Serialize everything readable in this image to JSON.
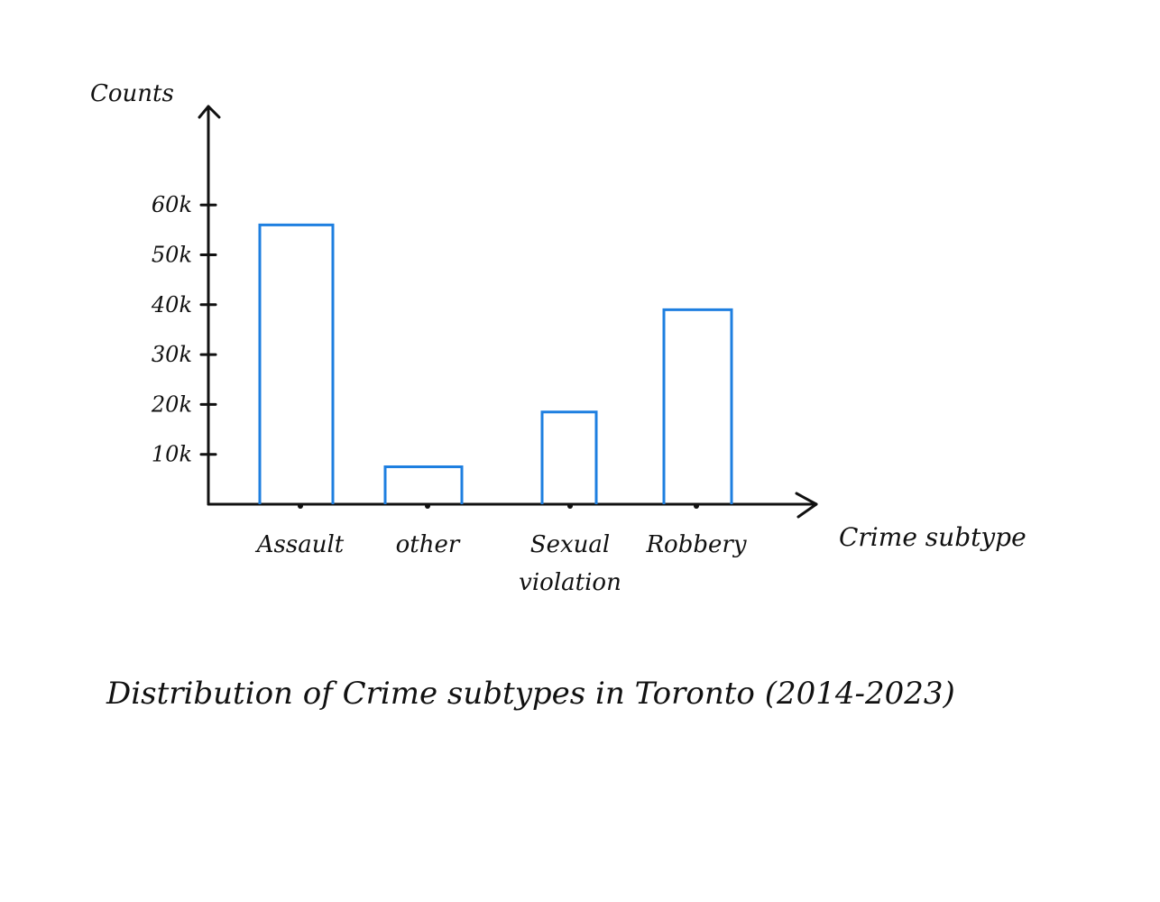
{
  "chart_data": {
    "type": "bar",
    "title": "Distribution of Crime subtypes in Toronto (2014-2023)",
    "xlabel": "Crime subtype",
    "ylabel": "Counts",
    "categories": [
      "Assault",
      "other",
      "Sexual violation",
      "Robbery"
    ],
    "values": [
      56000,
      7500,
      18500,
      39000
    ],
    "yticks": [
      10000,
      20000,
      30000,
      40000,
      50000,
      60000
    ],
    "ytick_labels": [
      "10k",
      "20k",
      "30k",
      "40k",
      "50k",
      "60k"
    ],
    "ylim": [
      0,
      70000
    ],
    "grid": false,
    "legend": "none",
    "bar_color": "#1e7fe0",
    "axis_color": "#111111"
  }
}
